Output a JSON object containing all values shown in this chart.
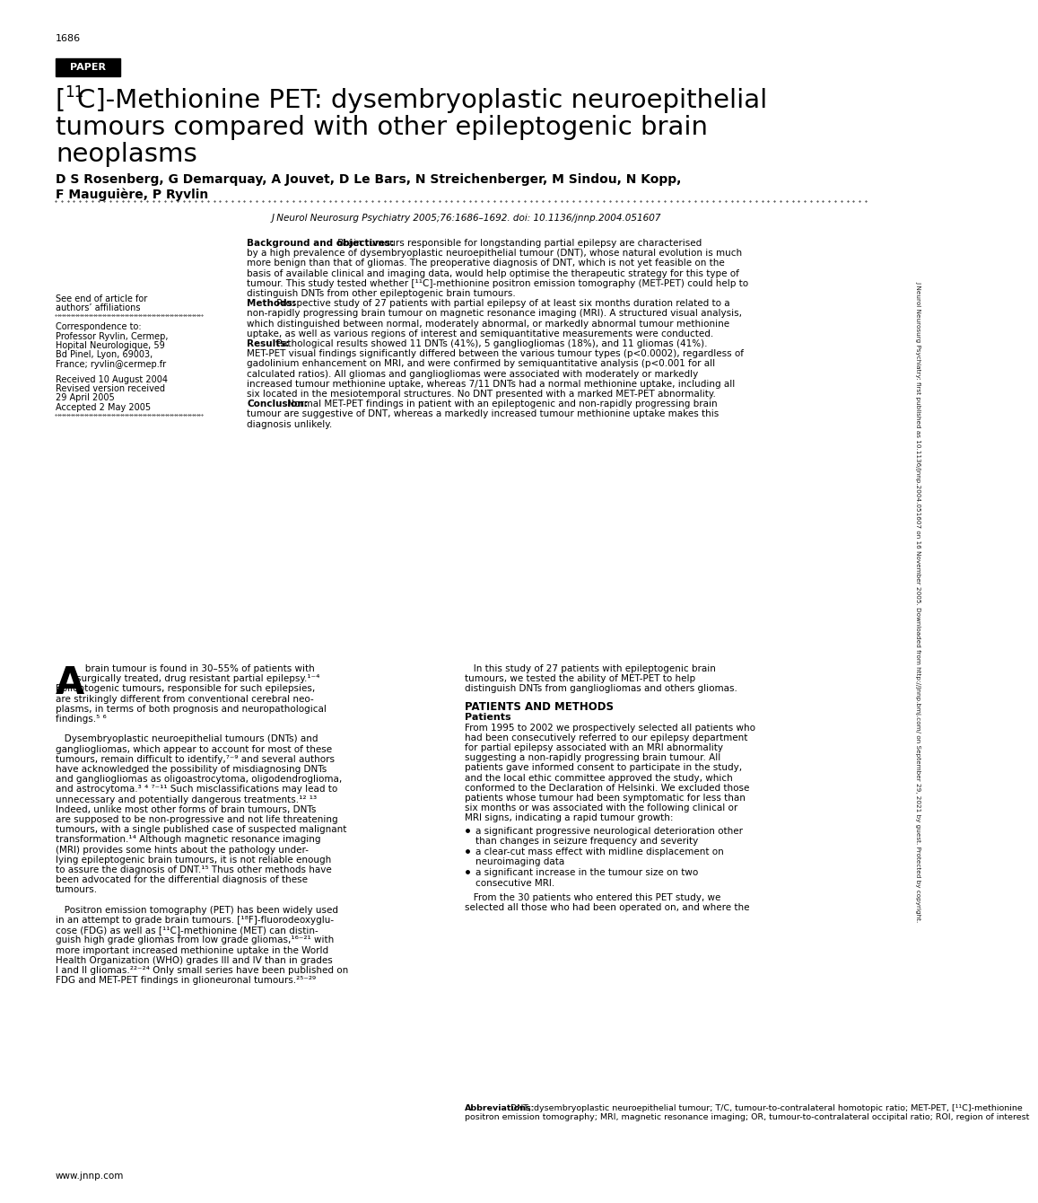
{
  "page_number": "1686",
  "paper_label": "PAPER",
  "title_line1_pre": "[",
  "title_sup": "11",
  "title_line1_post": "C]-Methionine PET: dysembryoplastic neuroepithelial",
  "title_line2": "tumours compared with other epileptogenic brain",
  "title_line3": "neoplasms",
  "authors1": "D S Rosenberg, G Demarquay, A Jouvet, D Le Bars, N Streichenberger, M Sindou, N Kopp,",
  "authors2": "F Mauguière, P Ryvlin",
  "journal_ref": "J Neurol Neurosurg Psychiatry 2005;76:1686–1692. doi: 10.1136/jnnp.2004.051607",
  "sidebar_text": "J Neurol Neurosurg Psychiatry: first published as 10.1136/jnnp.2004.051607 on 16 November 2005. Downloaded from http://jnnp.bmj.com/ on September 29, 2021 by guest. Protected by copyright.",
  "see_end": "See end of article for\nauthors’ affiliations",
  "correspondence": "Correspondence to:\nProfessor Ryvlin, Cermep,\nHopital Neurologique, 59\nBd Pinel, Lyon, 69003,\nFrance; ryvlin@cermep.fr",
  "received": "Received 10 August 2004\nRevised version received\n29 April 2005\nAccepted 2 May 2005",
  "abs_bg_bold": "Background and objectives:",
  "abs_bg_text": " Brain tumours responsible for longstanding partial epilepsy are characterised by a high prevalence of dysembryoplastic neuroepithelial tumour (DNT), whose natural evolution is much more benign than that of gliomas. The preoperative diagnosis of DNT, which is not yet feasible on the basis of available clinical and imaging data, would help optimise the therapeutic strategy for this type of tumour. This study tested whether [¹¹C]-methionine positron emission tomography (MET-PET) could help to distinguish DNTs from other epileptogenic brain tumours.",
  "abs_meth_bold": "Methods:",
  "abs_meth_text": " Prospective study of 27 patients with partial epilepsy of at least six months duration related to a non-rapidly progressing brain tumour on magnetic resonance imaging (MRI). A structured visual analysis, which distinguished between normal, moderately abnormal, or markedly abnormal tumour methionine uptake, as well as various regions of interest and semiquantitative measurements were conducted.",
  "abs_res_bold": "Results:",
  "abs_res_text": " Pathological results showed 11 DNTs (41%), 5 gangliogliomas (18%), and 11 gliomas (41%). MET-PET visual findings significantly differed between the various tumour types (p<0.0002), regardless of gadolinium enhancement on MRI, and were confirmed by semiquantitative analysis (p<0.001 for all calculated ratios). All gliomas and gangliogliomas were associated with moderately or markedly increased tumour methionine uptake, whereas 7/11 DNTs had a normal methionine uptake, including all six located in the mesiotemporal structures. No DNT presented with a marked MET-PET abnormality.",
  "abs_conc_bold": "Conclusion:",
  "abs_conc_text": " Normal MET-PET findings in patient with an epileptogenic and non-rapidly progressing brain tumour are suggestive of DNT, whereas a markedly increased tumour methionine uptake makes this diagnosis unlikely.",
  "body_left": [
    "   brain tumour is found in 30–55% of patients with",
    "surgically treated, drug resistant partial epilepsy.¹⁻⁴",
    "Epileptogenic tumours, responsible for such epilepsies,",
    "are strikingly different from conventional cerebral neo-",
    "plasms, in terms of both prognosis and neuropathological",
    "findings.⁵ ⁶",
    "",
    "   Dysembryoplastic neuroepithelial tumours (DNTs) and",
    "gangliogliomas, which appear to account for most of these",
    "tumours, remain difficult to identify,⁷⁻⁹ and several authors",
    "have acknowledged the possibility of misdiagnosing DNTs",
    "and gangliogliomas as oligoastrocytoma, oligodendroglioma,",
    "and astrocytoma.³ ⁴ ⁷⁻¹¹ Such misclassifications may lead to",
    "unnecessary and potentially dangerous treatments.¹² ¹³",
    "Indeed, unlike most other forms of brain tumours, DNTs",
    "are supposed to be non-progressive and not life threatening",
    "tumours, with a single published case of suspected malignant",
    "transformation.¹⁴ Although magnetic resonance imaging",
    "(MRI) provides some hints about the pathology under-",
    "lying epileptogenic brain tumours, it is not reliable enough",
    "to assure the diagnosis of DNT.¹⁵ Thus other methods have",
    "been advocated for the differential diagnosis of these",
    "tumours.",
    "",
    "   Positron emission tomography (PET) has been widely used",
    "in an attempt to grade brain tumours. [¹⁸F]-fluorodeoxyglu-",
    "cose (FDG) as well as [¹¹C]-methionine (MET) can distin-",
    "guish high grade gliomas from low grade gliomas,¹⁶⁻²¹ with",
    "more important increased methionine uptake in the World",
    "Health Organization (WHO) grades III and IV than in grades",
    "I and II gliomas.²²⁻²⁴ Only small series have been published on",
    "FDG and MET-PET findings in glioneuronal tumours.²⁵⁻²⁹"
  ],
  "body_right_intro": [
    "   In this study of 27 patients with epileptogenic brain",
    "tumours, we tested the ability of MET-PET to help",
    "distinguish DNTs from gangliogliomas and others gliomas."
  ],
  "body_right_section": "PATIENTS AND METHODS",
  "body_right_subsection": "Patients",
  "body_right_patients": [
    "From 1995 to 2002 we prospectively selected all patients who",
    "had been consecutively referred to our epilepsy department",
    "for partial epilepsy associated with an MRI abnormality",
    "suggesting a non-rapidly progressing brain tumour. All",
    "patients gave informed consent to participate in the study,",
    "and the local ethic committee approved the study, which",
    "conformed to the Declaration of Helsinki. We excluded those",
    "patients whose tumour had been symptomatic for less than",
    "six months or was associated with the following clinical or",
    "MRI signs, indicating a rapid tumour growth:"
  ],
  "bullet1_l1": "a significant progressive neurological deterioration other",
  "bullet1_l2": "than changes in seizure frequency and severity",
  "bullet2_l1": "a clear-cut mass effect with midline displacement on",
  "bullet2_l2": "neuroimaging data",
  "bullet3_l1": "a significant increase in the tumour size on two",
  "bullet3_l2": "consecutive MRI.",
  "body_right_end": [
    "   From the 30 patients who entered this PET study, we",
    "selected all those who had been operated on, and where the"
  ],
  "abbrev_bold": "Abbreviations:",
  "abbrev_text": " DNT, dysembryoplastic neuroepithelial tumour; T/C, tumour-to-contralateral homotopic ratio; MET-PET, [¹¹C]-methionine positron emission tomography; MRI, magnetic resonance imaging; OR, tumour-to-contralateral occipital ratio; ROI, region of interest",
  "website": "www.jnnp.com",
  "bg_color": "#ffffff"
}
